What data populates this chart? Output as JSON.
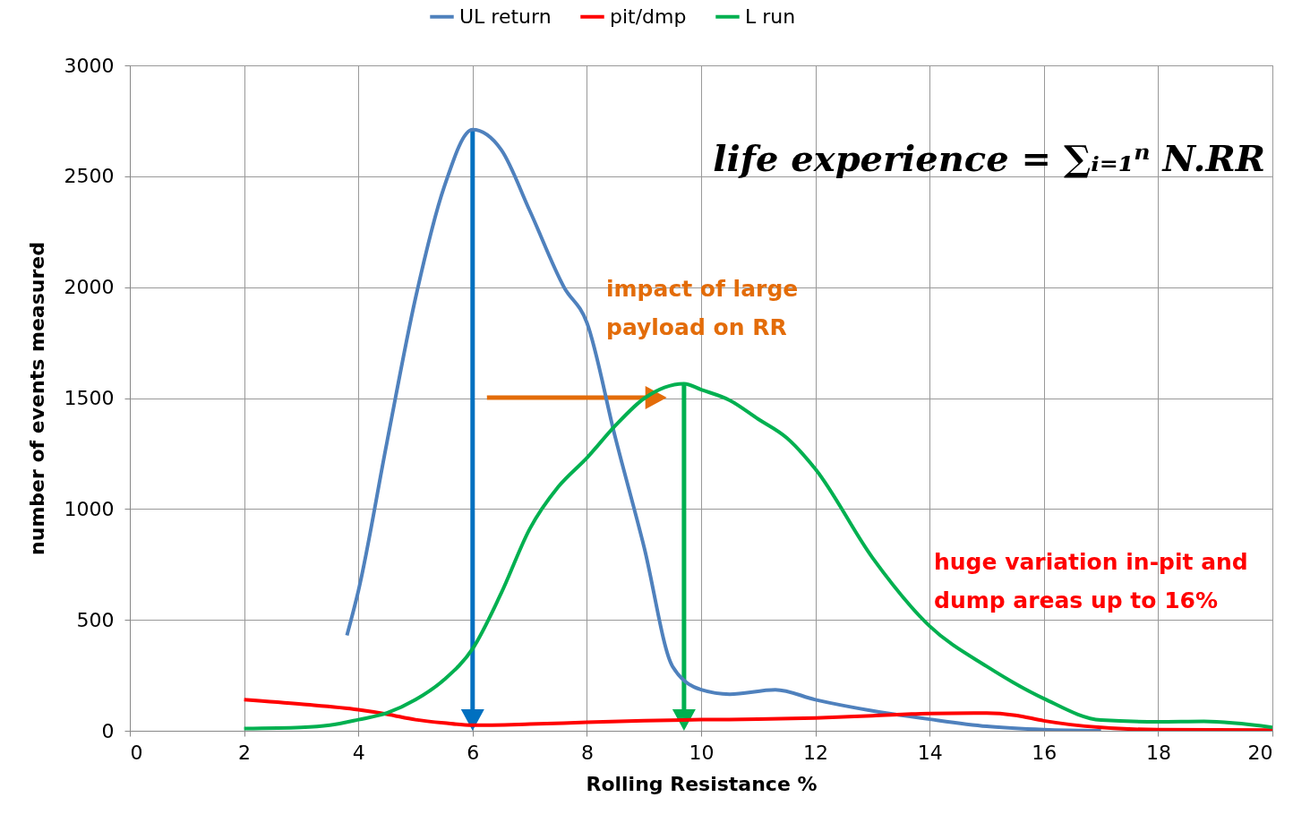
{
  "chart_data": {
    "type": "line",
    "xlabel": "Rolling Resistance %",
    "ylabel": "number of events measured",
    "xlim": [
      0,
      20
    ],
    "xticks": [
      0,
      2,
      4,
      6,
      8,
      10,
      12,
      14,
      16,
      18,
      20
    ],
    "ylim": [
      0,
      3000
    ],
    "yticks": [
      0,
      500,
      1000,
      1500,
      2000,
      2500,
      3000
    ],
    "grid": true,
    "legend": "top",
    "line_style": "solid",
    "marker": "none",
    "series": [
      {
        "name": "UL return",
        "color": "#4f81bd",
        "x": [
          3.8,
          4,
          4.5,
          5,
          5.5,
          6,
          6.5,
          7,
          7.6,
          8,
          8.5,
          9,
          9.5,
          10,
          10.5,
          11.3,
          12,
          13,
          14,
          15,
          16,
          17
        ],
        "values": [
          430,
          630,
          1300,
          1950,
          2450,
          2710,
          2620,
          2345,
          2000,
          1840,
          1320,
          830,
          290,
          185,
          165,
          185,
          140,
          90,
          52,
          20,
          5,
          0
        ]
      },
      {
        "name": "pit/dmp",
        "color": "#ff0000",
        "x": [
          2,
          3,
          4,
          4.5,
          5,
          5.5,
          6,
          7,
          8,
          9,
          10,
          11,
          12,
          13,
          14,
          15,
          15.5,
          16,
          17,
          18,
          20
        ],
        "values": [
          140,
          120,
          95,
          75,
          50,
          35,
          25,
          30,
          38,
          45,
          50,
          52,
          58,
          68,
          78,
          80,
          70,
          45,
          15,
          5,
          3
        ]
      },
      {
        "name": "L run",
        "color": "#00b050",
        "x": [
          2,
          3,
          3.5,
          4,
          4.5,
          5,
          5.5,
          6,
          6.5,
          7,
          7.5,
          8,
          8.5,
          9,
          9.7,
          10,
          10.5,
          11,
          11.5,
          12,
          13,
          14,
          15,
          16,
          17,
          18,
          18.8,
          20
        ],
        "values": [
          10,
          15,
          25,
          50,
          80,
          140,
          230,
          370,
          620,
          910,
          1100,
          1230,
          1376,
          1498,
          1565,
          1538,
          1490,
          1405,
          1320,
          1180,
          780,
          472,
          290,
          145,
          48,
          40,
          42,
          15
        ]
      }
    ],
    "annotations": [
      "life experience = ∑ᵢ₌₁ⁿ N.RR",
      "impact of large\npayload on RR",
      "huge variation in-pit and\ndump areas up to 16%"
    ]
  }
}
